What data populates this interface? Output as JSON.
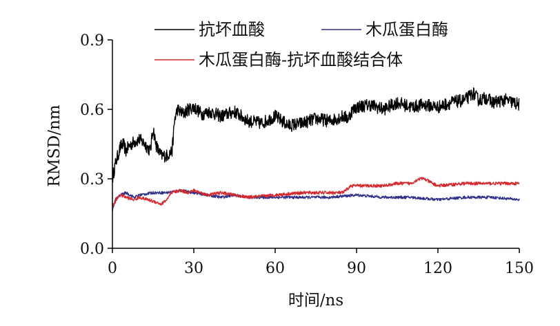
{
  "chart_data": {
    "type": "line",
    "xlabel": "时间/ns",
    "ylabel": "RMSD/nm",
    "xlim": [
      0,
      150
    ],
    "ylim": [
      0.0,
      0.9
    ],
    "xticks": [
      0,
      30,
      60,
      90,
      120,
      150
    ],
    "yticks": [
      0.0,
      0.3,
      0.6,
      0.9
    ],
    "x_tick_labels": [
      "0",
      "30",
      "60",
      "90",
      "120",
      "150"
    ],
    "y_tick_labels": [
      "0.0",
      "0.3",
      "0.6",
      "0.9"
    ],
    "grid": false,
    "legend_position": "top",
    "series": [
      {
        "name": "抗坏血酸",
        "color": "#000000",
        "x": [
          0,
          1,
          2,
          3,
          4,
          5,
          6,
          8,
          10,
          12,
          14,
          15,
          16,
          17,
          18,
          20,
          21,
          22,
          23,
          24,
          26,
          28,
          30,
          33,
          36,
          40,
          45,
          50,
          55,
          60,
          65,
          70,
          75,
          80,
          85,
          87,
          88,
          90,
          95,
          100,
          105,
          110,
          115,
          120,
          125,
          130,
          133,
          135,
          138,
          140,
          145,
          150
        ],
        "y": [
          0.3,
          0.36,
          0.4,
          0.44,
          0.45,
          0.42,
          0.44,
          0.46,
          0.47,
          0.45,
          0.42,
          0.52,
          0.45,
          0.42,
          0.4,
          0.4,
          0.41,
          0.42,
          0.56,
          0.6,
          0.58,
          0.6,
          0.61,
          0.58,
          0.59,
          0.57,
          0.59,
          0.55,
          0.54,
          0.57,
          0.53,
          0.54,
          0.56,
          0.55,
          0.57,
          0.56,
          0.59,
          0.61,
          0.62,
          0.6,
          0.63,
          0.61,
          0.62,
          0.61,
          0.63,
          0.64,
          0.67,
          0.64,
          0.65,
          0.63,
          0.64,
          0.62
        ]
      },
      {
        "name": "木瓜蛋白酶",
        "color": "#2e2f87",
        "x": [
          0,
          1,
          2,
          3,
          5,
          8,
          10,
          15,
          20,
          25,
          30,
          35,
          40,
          45,
          50,
          55,
          60,
          70,
          80,
          90,
          100,
          110,
          120,
          130,
          140,
          150
        ],
        "y": [
          0.16,
          0.21,
          0.22,
          0.23,
          0.24,
          0.22,
          0.23,
          0.24,
          0.24,
          0.25,
          0.24,
          0.23,
          0.22,
          0.23,
          0.22,
          0.22,
          0.22,
          0.22,
          0.22,
          0.23,
          0.22,
          0.22,
          0.21,
          0.22,
          0.22,
          0.21
        ]
      },
      {
        "name": "木瓜蛋白酶-抗坏血酸结合体",
        "color": "#d42a2e",
        "x": [
          0,
          1,
          2,
          3,
          5,
          8,
          10,
          13,
          16,
          18,
          20,
          22,
          25,
          28,
          30,
          35,
          40,
          45,
          50,
          60,
          70,
          80,
          85,
          88,
          90,
          100,
          105,
          110,
          113,
          115,
          118,
          120,
          130,
          140,
          150
        ],
        "y": [
          0.18,
          0.2,
          0.22,
          0.23,
          0.22,
          0.21,
          0.22,
          0.21,
          0.2,
          0.19,
          0.21,
          0.24,
          0.25,
          0.24,
          0.25,
          0.23,
          0.24,
          0.23,
          0.22,
          0.23,
          0.24,
          0.24,
          0.24,
          0.27,
          0.27,
          0.27,
          0.28,
          0.28,
          0.3,
          0.3,
          0.28,
          0.27,
          0.28,
          0.28,
          0.28
        ]
      }
    ]
  }
}
